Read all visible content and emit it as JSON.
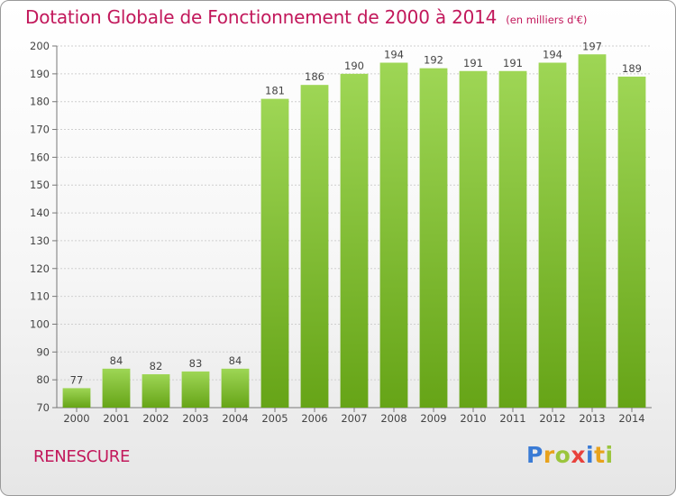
{
  "chart_data": {
    "type": "bar",
    "title": "Dotation Globale de Fonctionnement de 2000 à 2014",
    "unit_note": "(en milliers d'€)",
    "categories": [
      "2000",
      "2001",
      "2002",
      "2003",
      "2004",
      "2005",
      "2006",
      "2007",
      "2008",
      "2009",
      "2010",
      "2011",
      "2012",
      "2013",
      "2014"
    ],
    "values": [
      77,
      84,
      82,
      83,
      84,
      181,
      186,
      190,
      194,
      192,
      191,
      191,
      194,
      197,
      189
    ],
    "ylim": [
      70,
      200
    ],
    "yticks": [
      70,
      80,
      90,
      100,
      110,
      120,
      130,
      140,
      150,
      160,
      170,
      180,
      190,
      200
    ],
    "xlabel": "",
    "ylabel": "",
    "grid": true,
    "bar_color_light": "#9ed655",
    "bar_color_dark": "#66a417"
  },
  "footer": {
    "commune": "RENESCURE",
    "logo_letters": [
      "P",
      "r",
      "o",
      "x",
      "i",
      "t",
      "i"
    ],
    "logo_colors": [
      "#3a7bd5",
      "#e8a21c",
      "#9bc53d",
      "#e8413c",
      "#3a7bd5",
      "#e8a21c",
      "#9bc53d"
    ]
  }
}
